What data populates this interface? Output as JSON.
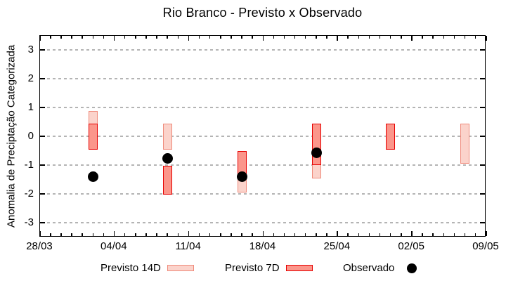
{
  "title": "Rio Branco - Previsto x Observado",
  "y_axis": {
    "label": "Anomalia de Preciptação Categorizada",
    "ticks": [
      3,
      2,
      1,
      0,
      -1,
      -2,
      -3
    ],
    "range": [
      -3.5,
      3.5
    ]
  },
  "x_axis": {
    "tick_labels": [
      "28/03",
      "04/04",
      "11/04",
      "18/04",
      "25/04",
      "02/05",
      "09/05"
    ],
    "major_tick_day_offsets": [
      0,
      7,
      14,
      21,
      28,
      35,
      42
    ],
    "minor_tick_every_days": 1,
    "total_days": 42
  },
  "legend": [
    {
      "label": "Previsto 14D",
      "swatch": "previsto-14d"
    },
    {
      "label": "Previsto 7D",
      "swatch": "previsto-7d"
    },
    {
      "label": "Observado",
      "swatch": "observado-dot"
    }
  ],
  "colors": {
    "p14_fill": "#fbd3cb",
    "p14_stroke": "#ef8a7b",
    "p7_fill": "#fb968b",
    "p7_stroke": "#e60000",
    "obs": "#000000",
    "grid": "#b4b4b4",
    "axis": "#000000"
  },
  "chart_data": {
    "type": "bar",
    "subtype": "ranged-forecast-bars-with-observed-scatter",
    "title": "Rio Branco - Previsto x Observado",
    "xlabel": "",
    "ylabel": "Anomalia de Preciptação Categorizada",
    "ylim": [
      -3.5,
      3.5
    ],
    "x_range_labels": [
      "28/03",
      "09/05"
    ],
    "grid": "horizontal-dashed",
    "legend_position": "bottom",
    "categories": [
      "02/04",
      "09/04",
      "16/04",
      "23/04",
      "30/04",
      "07/05"
    ],
    "x_day_offsets": [
      5,
      12,
      19,
      26,
      33,
      40
    ],
    "series": [
      {
        "name": "Previsto 14D",
        "kind": "range-bar",
        "ranges": [
          [
            -0.45,
            0.9
          ],
          [
            -0.45,
            0.45
          ],
          [
            -1.95,
            -0.5
          ],
          [
            -1.45,
            0.45
          ],
          null,
          [
            -0.95,
            0.45
          ]
        ]
      },
      {
        "name": "Previsto 7D",
        "kind": "range-bar",
        "ranges": [
          [
            -0.45,
            0.45
          ],
          [
            -2.0,
            -1.0
          ],
          [
            -1.4,
            -0.5
          ],
          [
            -1.0,
            0.45
          ],
          [
            -0.45,
            0.45
          ],
          null
        ]
      },
      {
        "name": "Observado",
        "kind": "scatter",
        "values": [
          -1.4,
          -0.75,
          -1.4,
          -0.55,
          null,
          null
        ]
      }
    ]
  }
}
